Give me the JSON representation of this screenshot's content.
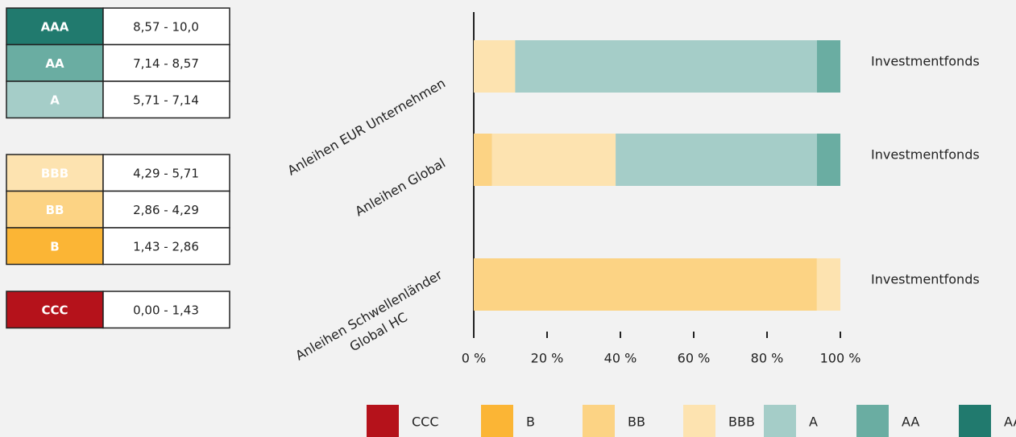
{
  "legend_table": {
    "groups": [
      [
        {
          "rating": "AAA",
          "range": "8,57 - 10,0"
        },
        {
          "rating": "AA",
          "range": "7,14 - 8,57"
        },
        {
          "rating": "A",
          "range": "5,71 - 7,14"
        }
      ],
      [
        {
          "rating": "BBB",
          "range": "4,29 - 5,71"
        },
        {
          "rating": "BB",
          "range": "2,86 - 4,29"
        },
        {
          "rating": "B",
          "range": "1,43 - 2,86"
        }
      ],
      [
        {
          "rating": "CCC",
          "range": "0,00 - 1,43"
        }
      ]
    ]
  },
  "chart_data": {
    "type": "stacked_barh",
    "categories": [
      "Anleihen EUR Unternehmen",
      "Anleihen Global",
      "Anleihen Schwellenländer\nGlobal HC"
    ],
    "bar_labels": [
      "Investmentfonds",
      "Investmentfonds",
      "Investmentfonds"
    ],
    "series": [
      {
        "name": "CCC",
        "color": "#b5121b",
        "values": [
          0,
          0,
          0
        ]
      },
      {
        "name": "B",
        "color": "#fbb535",
        "values": [
          0,
          0,
          0
        ]
      },
      {
        "name": "BB",
        "color": "#fcd384",
        "values": [
          0,
          5,
          93.6
        ]
      },
      {
        "name": "BBB",
        "color": "#fde3b0",
        "values": [
          11.3,
          33.7,
          6.4
        ]
      },
      {
        "name": "A",
        "color": "#a5cdc8",
        "values": [
          82.3,
          54.9,
          0
        ]
      },
      {
        "name": "AA",
        "color": "#6aada2",
        "values": [
          6.4,
          6.4,
          0
        ]
      },
      {
        "name": "AAA",
        "color": "#217a6e",
        "values": [
          0,
          0,
          0
        ]
      }
    ],
    "xlim": [
      0,
      100
    ],
    "xticks": [
      {
        "value": 0,
        "label": "0 %"
      },
      {
        "value": 20,
        "label": "20 %"
      },
      {
        "value": 40,
        "label": "40 %"
      },
      {
        "value": 60,
        "label": "60 %"
      },
      {
        "value": 80,
        "label": "80 %"
      },
      {
        "value": 100,
        "label": "100 %"
      }
    ]
  }
}
